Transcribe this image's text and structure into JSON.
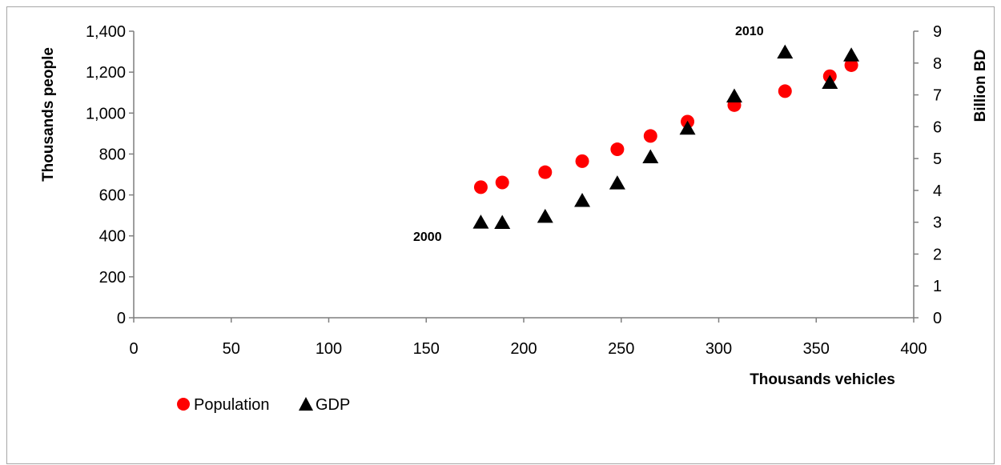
{
  "chart_data": {
    "type": "scatter",
    "title": "",
    "xlabel": "Thousands vehicles",
    "ylabel": "Thousands people",
    "y2label": "Billion BD",
    "xlim": [
      0,
      400
    ],
    "ylim": [
      0,
      1400
    ],
    "y2lim": [
      0,
      9
    ],
    "x_ticks": [
      "0",
      "50",
      "100",
      "150",
      "200",
      "250",
      "300",
      "350",
      "400"
    ],
    "y_ticks": [
      "0",
      "200",
      "400",
      "600",
      "800",
      "1,000",
      "1,200",
      "1,400"
    ],
    "y2_ticks": [
      "0",
      "1",
      "2",
      "3",
      "4",
      "5",
      "6",
      "7",
      "8",
      "9"
    ],
    "grid": false,
    "legend_position": "bottom-left",
    "colors": {
      "population": "#ff0000",
      "gdp": "#000000"
    },
    "series": [
      {
        "name": "Population",
        "axis": "left",
        "marker": "circle",
        "points": [
          {
            "x": 178,
            "y": 638
          },
          {
            "x": 189,
            "y": 661
          },
          {
            "x": 211,
            "y": 711
          },
          {
            "x": 230,
            "y": 765
          },
          {
            "x": 248,
            "y": 823
          },
          {
            "x": 265,
            "y": 888
          },
          {
            "x": 284,
            "y": 958
          },
          {
            "x": 308,
            "y": 1039
          },
          {
            "x": 334,
            "y": 1107
          },
          {
            "x": 357,
            "y": 1180
          },
          {
            "x": 368,
            "y": 1234
          }
        ]
      },
      {
        "name": "GDP",
        "axis": "right",
        "marker": "triangle",
        "points": [
          {
            "x": 178,
            "y": 2.99
          },
          {
            "x": 189,
            "y": 2.98
          },
          {
            "x": 211,
            "y": 3.17
          },
          {
            "x": 230,
            "y": 3.67
          },
          {
            "x": 248,
            "y": 4.22
          },
          {
            "x": 265,
            "y": 5.04
          },
          {
            "x": 284,
            "y": 5.94
          },
          {
            "x": 308,
            "y": 6.95
          },
          {
            "x": 334,
            "y": 8.33
          },
          {
            "x": 357,
            "y": 7.38
          },
          {
            "x": 368,
            "y": 8.24
          }
        ]
      }
    ],
    "annotations": [
      {
        "text": "2000"
      },
      {
        "text": "2010"
      }
    ]
  }
}
